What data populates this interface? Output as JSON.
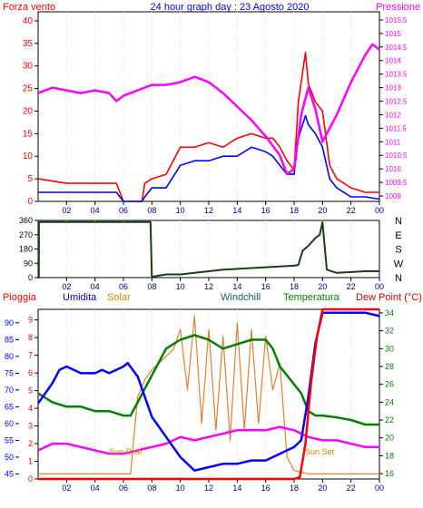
{
  "header": {
    "left_label": "Forza vento",
    "title": "24 hour graph day : 23 Agosto 2020",
    "right_label": "Pressione"
  },
  "chart_data": [
    {
      "type": "line",
      "title": "24 hour graph day : 23 Agosto 2020",
      "x_ticks": [
        "02",
        "04",
        "06",
        "08",
        "10",
        "12",
        "14",
        "16",
        "18",
        "20",
        "22",
        "00"
      ],
      "left_axis": {
        "label": "Forza vento",
        "ticks": [
          0,
          5,
          10,
          15,
          20,
          25,
          30,
          35,
          40
        ],
        "ylim": [
          0,
          42
        ]
      },
      "right_axis": {
        "label": "Pressione",
        "ticks": [
          "1009",
          "1009.5",
          "1010",
          "1010.5",
          "1011",
          "1011.5",
          "1012",
          "1012.5",
          "1013",
          "1013.5",
          "1014",
          "1014.5",
          "1015",
          "1015.5"
        ],
        "ylim": [
          1008.8,
          1015.8
        ]
      },
      "series": [
        {
          "axis": "left",
          "color": "#ff0000",
          "x": [
            0,
            2,
            4,
            5.5,
            6,
            7.3,
            7.5,
            8,
            9,
            10,
            11,
            12,
            13,
            14,
            15,
            16,
            16.5,
            17,
            17.5,
            18,
            18.3,
            18.8,
            19,
            19.5,
            20,
            20.5,
            21,
            22,
            23,
            24
          ],
          "values": [
            5,
            4,
            4,
            4,
            0,
            0,
            4,
            5,
            6,
            12,
            12,
            13,
            12,
            14,
            15,
            14,
            14,
            12,
            9,
            7,
            22,
            33,
            26,
            22,
            20,
            8,
            5,
            3,
            2,
            2
          ]
        },
        {
          "axis": "left",
          "color": "#0000ff",
          "x": [
            0,
            2,
            4,
            5.5,
            6,
            7.3,
            7.5,
            8,
            9,
            10,
            11,
            12,
            13,
            14,
            15,
            16,
            16.5,
            17,
            17.5,
            18,
            18.3,
            18.8,
            19,
            19.5,
            20,
            20.5,
            21,
            22,
            23,
            24
          ],
          "values": [
            2,
            2,
            2,
            2,
            0,
            0,
            1,
            3,
            3,
            8,
            9,
            9,
            10,
            10,
            12,
            11,
            10,
            8,
            6,
            6,
            14,
            19,
            17,
            15,
            12,
            5,
            3,
            1,
            1,
            0.5
          ]
        },
        {
          "axis": "right",
          "color": "#ff00ff",
          "x": [
            0,
            1,
            2,
            3,
            4,
            5,
            5.5,
            6,
            7,
            8,
            9,
            10,
            11,
            12,
            13,
            14,
            15,
            16,
            17,
            17.5,
            18,
            18.5,
            19,
            19.5,
            20,
            21,
            22,
            23,
            23.5,
            24
          ],
          "values": [
            1012.8,
            1013.0,
            1012.9,
            1012.8,
            1012.9,
            1012.8,
            1012.5,
            1012.7,
            1012.9,
            1013.1,
            1013.1,
            1013.2,
            1013.4,
            1013.2,
            1012.8,
            1012.3,
            1011.8,
            1011.2,
            1010.5,
            1009.8,
            1010.0,
            1012.0,
            1013.0,
            1012.2,
            1011.0,
            1012.0,
            1013.2,
            1014.2,
            1014.6,
            1014.4
          ]
        }
      ]
    },
    {
      "type": "line",
      "title": "",
      "x_ticks": [
        "02",
        "04",
        "06",
        "08",
        "10",
        "12",
        "14",
        "16",
        "18",
        "20",
        "22",
        "00"
      ],
      "left_axis": {
        "ticks": [
          0,
          90,
          180,
          270,
          360
        ],
        "ylim": [
          0,
          360
        ]
      },
      "right_labels": [
        "N",
        "W",
        "S",
        "E",
        "N"
      ],
      "series": [
        {
          "color": "#1a3d1a",
          "x": [
            0,
            0.05,
            0.06,
            4,
            7.9,
            8,
            9,
            10,
            11,
            12,
            13,
            14,
            15,
            16,
            17,
            18,
            18.3,
            18.6,
            19,
            19.5,
            19.8,
            20,
            20.3,
            21,
            22,
            23,
            24
          ],
          "values": [
            0,
            0,
            350,
            350,
            350,
            5,
            20,
            20,
            30,
            40,
            50,
            55,
            60,
            65,
            70,
            75,
            80,
            170,
            200,
            250,
            270,
            350,
            50,
            30,
            35,
            40,
            40
          ]
        }
      ]
    },
    {
      "type": "line",
      "x_ticks": [
        "02",
        "04",
        "06",
        "08",
        "10",
        "12",
        "14",
        "16",
        "18",
        "20",
        "22",
        "00"
      ],
      "legend": [
        "Pioggia",
        "Umidita",
        "Solar",
        "Windchill",
        "Temperatura",
        "Dew Point (°C)"
      ],
      "annotations": [
        "Sun Rise",
        "Sun Set"
      ],
      "left_axis_humidity": {
        "ticks": [
          45,
          50,
          55,
          60,
          65,
          70,
          75,
          80,
          85,
          90
        ],
        "ylim": [
          43.5,
          94
        ]
      },
      "left_axis_rain": {
        "ticks": [
          0,
          1,
          2,
          3,
          4,
          5,
          6,
          7,
          8,
          9
        ],
        "ylim": [
          0,
          9.6
        ]
      },
      "right_axis": {
        "label": "Temperatura",
        "ticks": [
          16,
          18,
          20,
          22,
          24,
          26,
          28,
          30,
          32,
          34
        ],
        "ylim": [
          15.4,
          34.4
        ]
      },
      "series": [
        {
          "name": "Umidita",
          "axis": "humidity",
          "color": "#0000ff",
          "x": [
            0,
            1,
            1.5,
            2,
            3,
            4,
            4.5,
            5,
            6,
            6.3,
            7,
            8,
            9,
            10,
            11,
            12,
            13,
            14,
            15,
            16,
            17,
            17.5,
            18,
            18.5,
            19,
            19.5,
            20,
            21,
            22,
            23,
            24
          ],
          "values": [
            66,
            72,
            76,
            77,
            75,
            75,
            76,
            75,
            77,
            78,
            74,
            62,
            56,
            50,
            46,
            47,
            48,
            48,
            49,
            49,
            51,
            52,
            53,
            55,
            68,
            84,
            93,
            93,
            93,
            93,
            92
          ]
        },
        {
          "name": "Temperatura",
          "axis": "temp",
          "color": "#008000",
          "x": [
            0,
            1,
            2,
            3,
            4,
            5,
            6,
            6.5,
            7,
            8,
            9,
            10,
            11,
            12,
            13,
            14,
            15,
            16,
            16.5,
            17,
            17.5,
            18,
            18.5,
            19,
            19.5,
            20,
            21,
            22,
            23,
            24
          ],
          "values": [
            25,
            24,
            23.5,
            23.5,
            23,
            23,
            22.5,
            22.5,
            24,
            27,
            30,
            31,
            31.5,
            31,
            30,
            30.5,
            31,
            31,
            30,
            28,
            27,
            26,
            25,
            23,
            22.5,
            22.5,
            22.3,
            22,
            21.5,
            21.5
          ]
        },
        {
          "name": "Dew Point (°C)",
          "axis": "humidity",
          "color": "#ff00ff",
          "x": [
            0,
            1,
            2,
            3,
            4,
            5,
            6,
            7,
            8,
            9,
            10,
            11,
            12,
            13,
            14,
            15,
            16,
            17,
            18,
            19,
            20,
            21,
            22,
            23,
            24
          ],
          "values": [
            52,
            54,
            54,
            53,
            52,
            51,
            51,
            52,
            53,
            54,
            56,
            55,
            56,
            57,
            58,
            58,
            58,
            59,
            58,
            56,
            55,
            55,
            54,
            53,
            53
          ]
        },
        {
          "name": "Pioggia",
          "axis": "rain",
          "color": "#ff0000",
          "x": [
            0,
            17.5,
            18,
            18.4,
            18.8,
            19.2,
            19.6,
            20,
            21,
            24
          ],
          "values": [
            0,
            0,
            0,
            0.1,
            2,
            5.5,
            8,
            9.6,
            9.6,
            9.6
          ]
        },
        {
          "name": "Solar",
          "axis": "humidity",
          "color": "#e08030",
          "x": [
            0,
            6.5,
            7,
            7.5,
            8,
            9,
            9.5,
            10,
            10.5,
            11,
            11.5,
            12,
            12.5,
            13,
            13.5,
            14,
            14.5,
            15,
            15.5,
            16,
            16.5,
            17,
            17.5,
            18,
            19,
            20,
            24
          ],
          "values": [
            45,
            45,
            68,
            73,
            76,
            80,
            82,
            88,
            70,
            92,
            60,
            88,
            58,
            86,
            55,
            90,
            58,
            88,
            60,
            86,
            70,
            78,
            50,
            46,
            45,
            45,
            45
          ]
        }
      ]
    }
  ]
}
